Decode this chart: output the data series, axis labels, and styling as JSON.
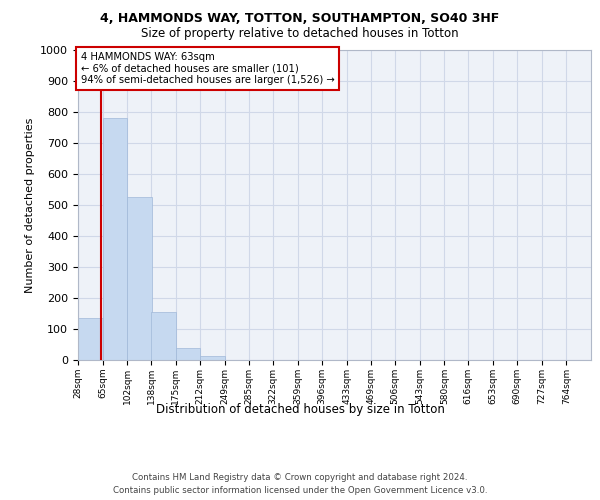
{
  "title1": "4, HAMMONDS WAY, TOTTON, SOUTHAMPTON, SO40 3HF",
  "title2": "Size of property relative to detached houses in Totton",
  "xlabel": "Distribution of detached houses by size in Totton",
  "ylabel": "Number of detached properties",
  "bin_edges": [
    28,
    65,
    102,
    138,
    175,
    212,
    249,
    285,
    322,
    359,
    396,
    433,
    469,
    506,
    543,
    580,
    616,
    653,
    690,
    727,
    764
  ],
  "bar_heights": [
    135,
    780,
    525,
    155,
    40,
    12,
    0,
    0,
    0,
    0,
    0,
    0,
    0,
    0,
    0,
    0,
    0,
    0,
    0,
    0
  ],
  "bar_color": "#c6d9f0",
  "bar_edge_color": "#a0b8d8",
  "property_size": 63,
  "property_label": "4 HAMMONDS WAY: 63sqm",
  "annotation_line1": "← 6% of detached houses are smaller (101)",
  "annotation_line2": "94% of semi-detached houses are larger (1,526) →",
  "vline_color": "#cc0000",
  "annotation_box_edge_color": "#cc0000",
  "ylim": [
    0,
    1000
  ],
  "yticks": [
    0,
    100,
    200,
    300,
    400,
    500,
    600,
    700,
    800,
    900,
    1000
  ],
  "grid_color": "#d0d8e8",
  "background_color": "#eef2f8",
  "footer1": "Contains HM Land Registry data © Crown copyright and database right 2024.",
  "footer2": "Contains public sector information licensed under the Open Government Licence v3.0."
}
